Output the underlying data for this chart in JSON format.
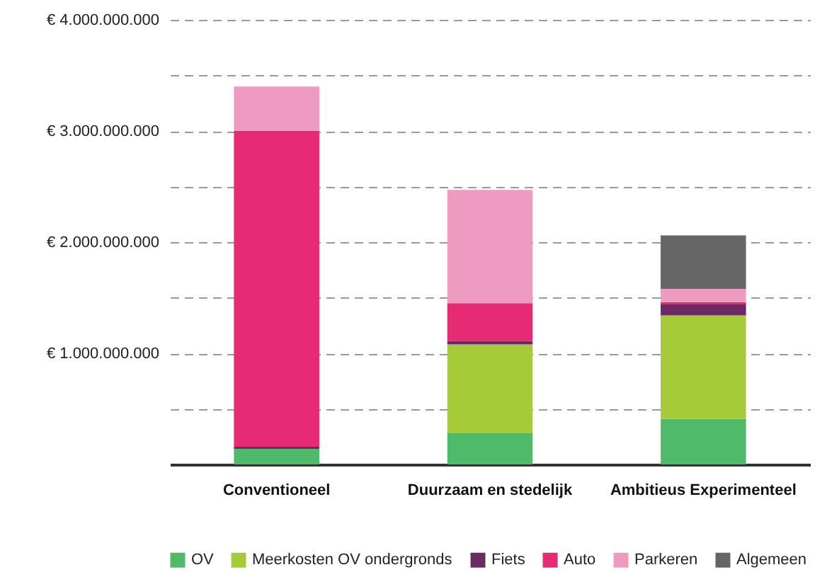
{
  "chart_data": {
    "type": "bar",
    "stacked": true,
    "categories": [
      "Conventioneel",
      "Duurzaam en stedelijk",
      "Ambitieus Experimenteel"
    ],
    "series": [
      {
        "name": "OV",
        "color": "#4fba6a",
        "values": [
          140000000,
          280000000,
          410000000
        ]
      },
      {
        "name": "Meerkosten OV ondergronds",
        "color": "#a5cb38",
        "values": [
          0,
          800000000,
          930000000
        ]
      },
      {
        "name": "Fiets",
        "color": "#6a2a63",
        "values": [
          20000000,
          30000000,
          100000000
        ]
      },
      {
        "name": "Auto",
        "color": "#e62a73",
        "values": [
          2840000000,
          340000000,
          20000000
        ]
      },
      {
        "name": "Parkeren",
        "color": "#ee9ac1",
        "values": [
          400000000,
          1020000000,
          120000000
        ]
      },
      {
        "name": "Algemeen",
        "color": "#666666",
        "values": [
          0,
          0,
          480000000
        ]
      }
    ],
    "ylim": [
      0,
      4000000000
    ],
    "yticks": [
      {
        "value": 0,
        "label": null
      },
      {
        "value": 500000000,
        "label": null
      },
      {
        "value": 1000000000,
        "label": "€ 1.000.000.000"
      },
      {
        "value": 1500000000,
        "label": null
      },
      {
        "value": 2000000000,
        "label": "€ 2.000.000.000"
      },
      {
        "value": 2500000000,
        "label": null
      },
      {
        "value": 3000000000,
        "label": "€ 3.000.000.000"
      },
      {
        "value": 3500000000,
        "label": null
      },
      {
        "value": 4000000000,
        "label": "€ 4.000.000.000"
      }
    ],
    "grid": "y",
    "legend": "bottom"
  }
}
